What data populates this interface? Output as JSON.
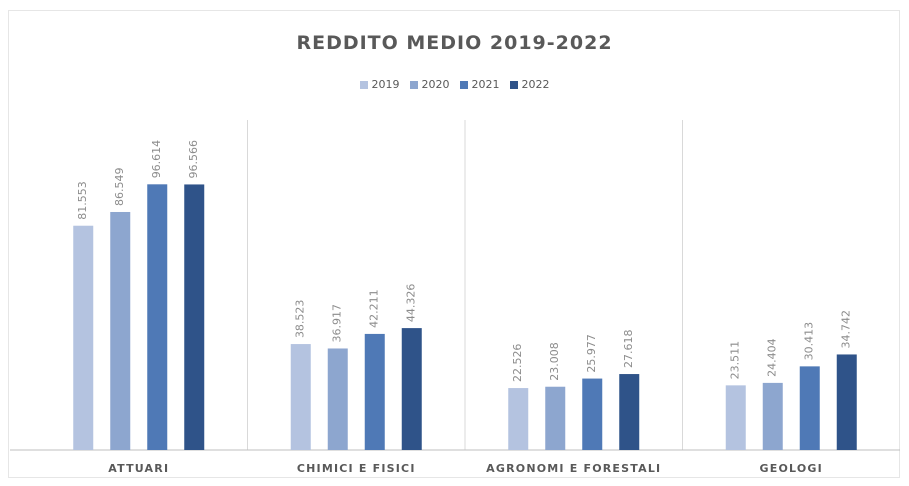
{
  "chart_data": {
    "type": "bar",
    "title": "REDDITO MEDIO 2019-2022",
    "categories": [
      "ATTUARI",
      "CHIMICI E FISICI",
      "AGRONOMI E FORESTALI",
      "GEOLOGI"
    ],
    "series": [
      {
        "name": "2019",
        "color": "#b4c3e0",
        "values": [
          81.553,
          38.523,
          22.526,
          23.511
        ],
        "labels": [
          "81.553",
          "38.523",
          "22.526",
          "23.511"
        ]
      },
      {
        "name": "2020",
        "color": "#8da6cf",
        "values": [
          86.549,
          36.917,
          23.008,
          24.404
        ],
        "labels": [
          "86.549",
          "36.917",
          "23.008",
          "24.404"
        ]
      },
      {
        "name": "2021",
        "color": "#4f79b6",
        "values": [
          96.614,
          42.211,
          25.977,
          30.413
        ],
        "labels": [
          "96.614",
          "42.211",
          "25.977",
          "30.413"
        ]
      },
      {
        "name": "2022",
        "color": "#2f5389",
        "values": [
          96.566,
          44.326,
          27.618,
          34.742
        ],
        "labels": [
          "96.566",
          "44.326",
          "27.618",
          "34.742"
        ]
      }
    ],
    "ylim": [
      0,
      120
    ],
    "grid": false,
    "legend_position": "top-center",
    "xlabel": "",
    "ylabel": ""
  }
}
